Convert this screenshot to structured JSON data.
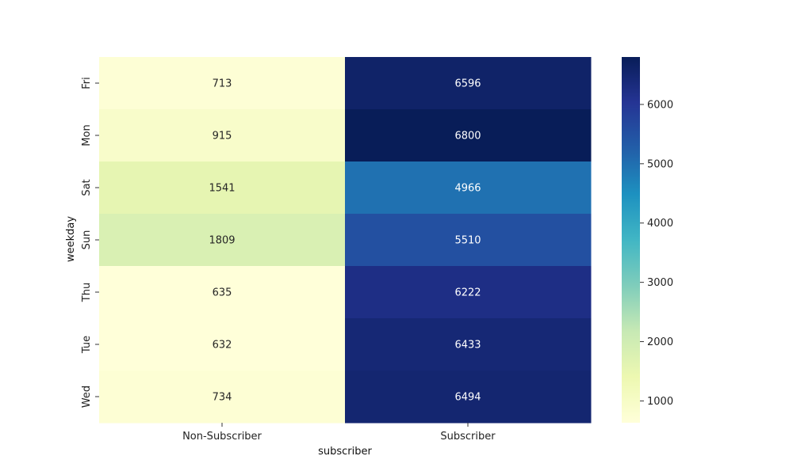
{
  "chart_data": {
    "type": "heatmap",
    "xlabel": "subscriber",
    "ylabel": "weekday",
    "x_categories": [
      "Non-Subscriber",
      "Subscriber"
    ],
    "y_categories": [
      "Fri",
      "Mon",
      "Sat",
      "Sun",
      "Thu",
      "Tue",
      "Wed"
    ],
    "values": [
      [
        713,
        6596
      ],
      [
        915,
        6800
      ],
      [
        1541,
        4966
      ],
      [
        1809,
        5510
      ],
      [
        635,
        6222
      ],
      [
        632,
        6433
      ],
      [
        734,
        6494
      ]
    ],
    "colorscale": "YlGnBu",
    "colorbar": {
      "range": [
        632,
        6800
      ],
      "ticks": [
        1000,
        2000,
        3000,
        4000,
        5000,
        6000
      ]
    },
    "annotations": true
  }
}
